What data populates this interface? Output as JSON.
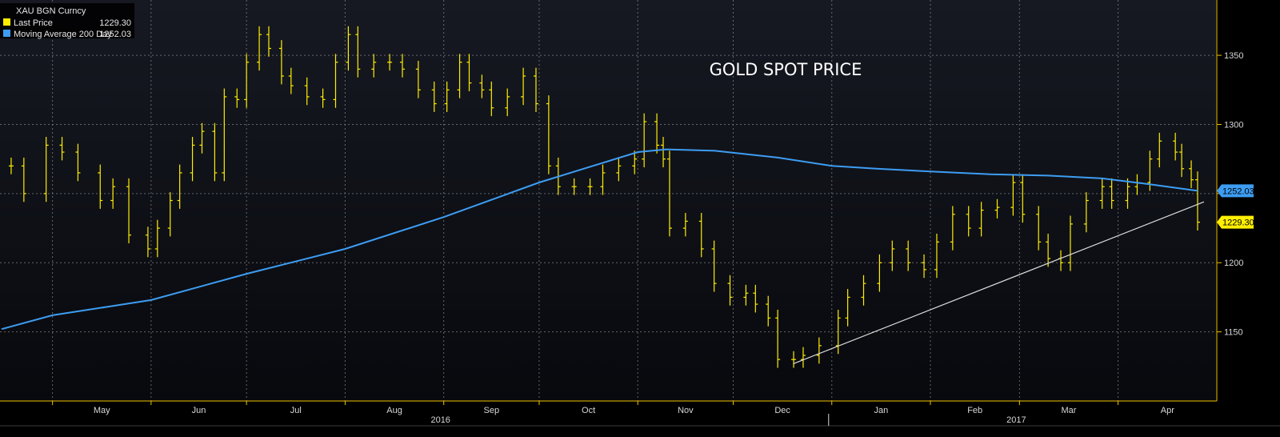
{
  "legend": {
    "ticker": "XAU BGN Curncy",
    "rows": [
      {
        "label": "Last Price",
        "value": "1229.30",
        "color": "#ffee00"
      },
      {
        "label": "Moving Average 200 Day",
        "value": "1252.03",
        "color": "#3d9df3"
      }
    ]
  },
  "colors": {
    "background": "#000000",
    "plot_background_top": "#161922",
    "plot_background_bottom": "#08090d",
    "grid": "#8a8a8a",
    "axis": "#f0c000",
    "price_bars": "#ffee00",
    "moving_average": "#3d9df3",
    "trendline": "#dcdcdc"
  },
  "chart_data": {
    "type": "line",
    "title": "GOLD SPOT PRICE",
    "xlabel": "",
    "ylabel": "",
    "grid": true,
    "legend_position": "top-left",
    "y_axis_position": "right",
    "ylim": [
      1100,
      1390
    ],
    "y_ticks": [
      1150,
      1200,
      1250,
      1300,
      1350
    ],
    "x_range": [
      "2016-04-15",
      "2017-04-26"
    ],
    "month_ticks": [
      {
        "label": "May",
        "date": "2016-05-01"
      },
      {
        "label": "Jun",
        "date": "2016-06-01"
      },
      {
        "label": "Jul",
        "date": "2016-07-01"
      },
      {
        "label": "Aug",
        "date": "2016-08-01"
      },
      {
        "label": "Sep",
        "date": "2016-09-01"
      },
      {
        "label": "Oct",
        "date": "2016-10-01"
      },
      {
        "label": "Nov",
        "date": "2016-11-01"
      },
      {
        "label": "Dec",
        "date": "2016-12-01"
      },
      {
        "label": "Jan",
        "date": "2017-01-01"
      },
      {
        "label": "Feb",
        "date": "2017-02-01"
      },
      {
        "label": "Mar",
        "date": "2017-03-01"
      },
      {
        "label": "Apr",
        "date": "2017-04-01"
      }
    ],
    "year_labels": [
      {
        "label": "2016",
        "date": "2016-08-31"
      },
      {
        "label": "2017",
        "date": "2017-02-28"
      }
    ],
    "year_separator": "2016-12-31",
    "series": [
      {
        "name": "Last Price",
        "style": "hlc-bars",
        "points": [
          [
            "2016-04-18",
            1270
          ],
          [
            "2016-04-22",
            1250
          ],
          [
            "2016-04-29",
            1285
          ],
          [
            "2016-05-04",
            1280
          ],
          [
            "2016-05-09",
            1265
          ],
          [
            "2016-05-16",
            1245
          ],
          [
            "2016-05-20",
            1255
          ],
          [
            "2016-05-25",
            1220
          ],
          [
            "2016-05-31",
            1210
          ],
          [
            "2016-06-03",
            1225
          ],
          [
            "2016-06-07",
            1245
          ],
          [
            "2016-06-10",
            1265
          ],
          [
            "2016-06-14",
            1285
          ],
          [
            "2016-06-17",
            1295
          ],
          [
            "2016-06-21",
            1265
          ],
          [
            "2016-06-24",
            1320
          ],
          [
            "2016-06-28",
            1318
          ],
          [
            "2016-07-01",
            1345
          ],
          [
            "2016-07-05",
            1365
          ],
          [
            "2016-07-08",
            1355
          ],
          [
            "2016-07-12",
            1335
          ],
          [
            "2016-07-15",
            1328
          ],
          [
            "2016-07-20",
            1320
          ],
          [
            "2016-07-25",
            1318
          ],
          [
            "2016-07-29",
            1345
          ],
          [
            "2016-08-02",
            1365
          ],
          [
            "2016-08-05",
            1340
          ],
          [
            "2016-08-10",
            1345
          ],
          [
            "2016-08-15",
            1345
          ],
          [
            "2016-08-19",
            1340
          ],
          [
            "2016-08-24",
            1325
          ],
          [
            "2016-08-29",
            1315
          ],
          [
            "2016-09-02",
            1325
          ],
          [
            "2016-09-06",
            1345
          ],
          [
            "2016-09-09",
            1330
          ],
          [
            "2016-09-13",
            1325
          ],
          [
            "2016-09-16",
            1312
          ],
          [
            "2016-09-21",
            1320
          ],
          [
            "2016-09-26",
            1335
          ],
          [
            "2016-09-30",
            1315
          ],
          [
            "2016-10-04",
            1270
          ],
          [
            "2016-10-07",
            1255
          ],
          [
            "2016-10-12",
            1255
          ],
          [
            "2016-10-17",
            1255
          ],
          [
            "2016-10-21",
            1265
          ],
          [
            "2016-10-26",
            1270
          ],
          [
            "2016-10-31",
            1275
          ],
          [
            "2016-11-03",
            1302
          ],
          [
            "2016-11-07",
            1285
          ],
          [
            "2016-11-09",
            1275
          ],
          [
            "2016-11-11",
            1225
          ],
          [
            "2016-11-16",
            1230
          ],
          [
            "2016-11-21",
            1210
          ],
          [
            "2016-11-25",
            1185
          ],
          [
            "2016-11-30",
            1175
          ],
          [
            "2016-12-05",
            1178
          ],
          [
            "2016-12-08",
            1170
          ],
          [
            "2016-12-12",
            1160
          ],
          [
            "2016-12-15",
            1130
          ],
          [
            "2016-12-20",
            1130
          ],
          [
            "2016-12-23",
            1133
          ],
          [
            "2016-12-28",
            1140
          ],
          [
            "2017-01-03",
            1160
          ],
          [
            "2017-01-06",
            1175
          ],
          [
            "2017-01-11",
            1185
          ],
          [
            "2017-01-16",
            1200
          ],
          [
            "2017-01-20",
            1210
          ],
          [
            "2017-01-25",
            1200
          ],
          [
            "2017-01-30",
            1195
          ],
          [
            "2017-02-03",
            1215
          ],
          [
            "2017-02-08",
            1235
          ],
          [
            "2017-02-13",
            1225
          ],
          [
            "2017-02-17",
            1238
          ],
          [
            "2017-02-22",
            1240
          ],
          [
            "2017-02-27",
            1258
          ],
          [
            "2017-03-02",
            1235
          ],
          [
            "2017-03-07",
            1215
          ],
          [
            "2017-03-10",
            1203
          ],
          [
            "2017-03-14",
            1200
          ],
          [
            "2017-03-17",
            1228
          ],
          [
            "2017-03-22",
            1245
          ],
          [
            "2017-03-27",
            1255
          ],
          [
            "2017-03-30",
            1245
          ],
          [
            "2017-04-04",
            1255
          ],
          [
            "2017-04-07",
            1258
          ],
          [
            "2017-04-11",
            1275
          ],
          [
            "2017-04-14",
            1288
          ],
          [
            "2017-04-19",
            1280
          ],
          [
            "2017-04-21",
            1268
          ],
          [
            "2017-04-24",
            1260
          ],
          [
            "2017-04-26",
            1229.3
          ]
        ]
      },
      {
        "name": "Moving Average 200 Day",
        "style": "line",
        "points": [
          [
            "2016-04-15",
            1152
          ],
          [
            "2016-05-01",
            1162
          ],
          [
            "2016-06-01",
            1173
          ],
          [
            "2016-07-01",
            1192
          ],
          [
            "2016-08-01",
            1210
          ],
          [
            "2016-09-01",
            1233
          ],
          [
            "2016-10-01",
            1258
          ],
          [
            "2016-10-15",
            1268
          ],
          [
            "2016-11-01",
            1280
          ],
          [
            "2016-11-10",
            1282
          ],
          [
            "2016-11-25",
            1281
          ],
          [
            "2016-12-15",
            1276
          ],
          [
            "2017-01-01",
            1270
          ],
          [
            "2017-01-15",
            1268
          ],
          [
            "2017-02-01",
            1266
          ],
          [
            "2017-02-20",
            1264
          ],
          [
            "2017-03-10",
            1263
          ],
          [
            "2017-03-27",
            1261
          ],
          [
            "2017-04-10",
            1257
          ],
          [
            "2017-04-26",
            1252.03
          ]
        ]
      },
      {
        "name": "Support trendline",
        "style": "trendline",
        "points": [
          [
            "2016-12-20",
            1127
          ],
          [
            "2017-04-28",
            1244
          ]
        ]
      }
    ],
    "last_value_tags": [
      {
        "value": "1252.03",
        "color": "#3d9df3"
      },
      {
        "value": "1229.30",
        "color": "#ffee00"
      }
    ]
  }
}
